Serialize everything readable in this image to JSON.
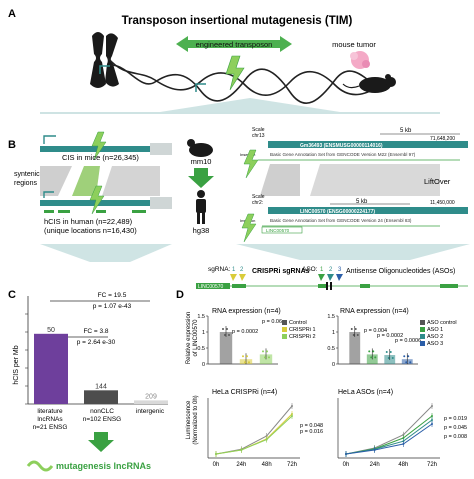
{
  "panel_a": {
    "letter": "A",
    "title": "Transposon insertional mutagenesis (TIM)",
    "transposon_label": "engineered transposon",
    "tumor_label": "mouse tumor"
  },
  "panel_b": {
    "letter": "B",
    "cis_mice": "CIS in mice (n=26,345)",
    "syntenic": "syntenic",
    "regions": "regions",
    "hcis_human": "hCIS in human (n=22,489)",
    "unique_loc": "(unique locations n=16,430)",
    "mm10": "mm10",
    "hg38": "hg38",
    "scale1": "Scale",
    "chr1": "chr13",
    "kb5": "5 kb",
    "mm_coord": "71,648,200",
    "mm_gene": "Gm36493 (ENSMUSG00000114016)",
    "basic1": "Basic Gene Annotation Set from GENCODE Version M22 (Ensembl 97)",
    "insertion1": "Insertion",
    "liftover": "LiftOver",
    "scale2": "Scale",
    "chr2": "chr2:",
    "hs_coord": "11,450,000",
    "hs_gene": "LINC00570 (ENSG00000224177)",
    "basic2": "Basic Gene Annotation Set from GENCODE Version 24 (Ensembl 83)",
    "insertion2": "Insertion",
    "hs_gene_small": "LINC00570"
  },
  "panel_c": {
    "letter": "C",
    "ylabel": "hCIS per Mb",
    "fc1": "FC = 19.5",
    "p1": "p = 1.07 e-43",
    "fc2": "FC = 3.8",
    "p2": "p = 2.64 e-30",
    "mutagenesis": "mutagenesis lncRNAs"
  },
  "panel_d": {
    "letter": "D",
    "sgrna": "sgRNA:",
    "sg1": "1",
    "sg2": "2",
    "crispri_title": "CRISPRi sgRNAs",
    "aso_label": "ASO:",
    "aso1": "1",
    "aso2": "2",
    "aso3": "3",
    "aso_title": "Antisense Oligonucleotides (ASOs)",
    "gene_tag": "LINC00570",
    "rna_title1": "RNA expression (n=4)",
    "rna_title2": "RNA expression (n=4)",
    "ylab_rel1": "Relative expression",
    "ylab_rel2": "of LINC00570",
    "p_a": "p = 0.0002",
    "p_b": "p = 0.06",
    "p_c": "p = 0.004",
    "p_d": "p = 0.0002",
    "p_e": "p = 0.0006",
    "legend_crispri": [
      "Control",
      "CRISPRi 1",
      "CRISPRi 2"
    ],
    "legend_aso": [
      "ASO control",
      "ASO 1",
      "ASO 2",
      "ASO 3"
    ],
    "growth_title1": "HeLa CRISPRi (n=4)",
    "growth_title2": "HeLa ASOs (n=4)",
    "ylab_lum1": "Luminescence",
    "ylab_lum2": "(Normalized to 0h)",
    "gp1": "p = 0.048",
    "gp2": "p = 0.016",
    "gp3": "p = 0.019",
    "gp4": "p = 0.045",
    "gp5": "p = 0.008"
  },
  "colors": {
    "green": "#3aa142",
    "teal": "#2f8c8a",
    "light_green": "#8dcf5c",
    "purple": "#6e3f9c",
    "gray_bar": "#5a5a5a",
    "yellow": "#d9cc3a",
    "blue_aso": "#2b5ea8"
  },
  "chart_data": [
    {
      "type": "bar",
      "panel": "C",
      "categories": [
        "literature lncRNAs n=21 ENSG",
        "nonCLC n=102 ENSG",
        "intergenic"
      ],
      "values": [
        50,
        144,
        209
      ],
      "value_labels": [
        "50",
        "144",
        "209"
      ],
      "ylabel": "hCIS per Mb",
      "colors": [
        "#6e3f9c",
        "#4d4d4d",
        "#d9d9d9"
      ]
    },
    {
      "type": "bar",
      "panel": "D",
      "title": "RNA expression (n=4)",
      "categories": [
        "Control",
        "CRISPRi 1",
        "CRISPRi 2"
      ],
      "values": [
        1.0,
        0.15,
        0.3
      ],
      "ylim": [
        0,
        1.5
      ],
      "yticks": [
        "0",
        "0.5",
        "1",
        "1.5"
      ],
      "ylabel": "Relative expression of LINC00570"
    },
    {
      "type": "bar",
      "panel": "D",
      "title": "RNA expression (n=4)",
      "categories": [
        "ASO control",
        "ASO 1",
        "ASO 2",
        "ASO 3"
      ],
      "values": [
        1.0,
        0.3,
        0.28,
        0.15
      ],
      "ylim": [
        0,
        1.5
      ],
      "yticks": [
        "0",
        "0.5",
        "1",
        "1.5"
      ]
    },
    {
      "type": "line",
      "panel": "D",
      "title": "HeLa CRISPRi (n=4)",
      "x": [
        "0h",
        "24h",
        "48h",
        "72h"
      ],
      "series": [
        {
          "name": "Control",
          "values": [
            1,
            2.2,
            5.5,
            13
          ]
        },
        {
          "name": "CRISPRi 1",
          "values": [
            1,
            2.0,
            4.8,
            11
          ]
        },
        {
          "name": "CRISPRi 2",
          "values": [
            1,
            2.0,
            4.6,
            10.5
          ]
        }
      ],
      "ylim": [
        0,
        15
      ],
      "ylabel": "Luminescence (Normalized to 0h)"
    },
    {
      "type": "line",
      "panel": "D",
      "title": "HeLa ASOs (n=4)",
      "x": [
        "0h",
        "24h",
        "48h",
        "72h"
      ],
      "series": [
        {
          "name": "ASO control",
          "values": [
            1,
            2.5,
            5.8,
            13
          ]
        },
        {
          "name": "ASO 1",
          "values": [
            1,
            2.3,
            5.0,
            10.5
          ]
        },
        {
          "name": "ASO 2",
          "values": [
            1,
            2.2,
            4.2,
            9.5
          ]
        },
        {
          "name": "ASO 3",
          "values": [
            1,
            2.0,
            3.5,
            8.5
          ]
        }
      ],
      "ylim": [
        0,
        15
      ]
    }
  ]
}
